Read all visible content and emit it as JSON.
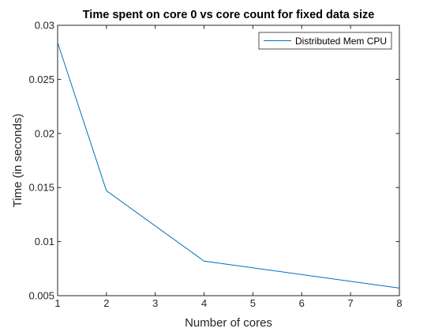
{
  "chart_data": {
    "type": "line",
    "title": "Time spent on core 0 vs core count for fixed data size",
    "xlabel": "Number of cores",
    "ylabel": "Time (in seconds)",
    "xlim": [
      1,
      8
    ],
    "ylim": [
      0.005,
      0.03
    ],
    "x_ticks": [
      "1",
      "2",
      "3",
      "4",
      "5",
      "6",
      "7",
      "8"
    ],
    "y_ticks": [
      "0.005",
      "0.01",
      "0.015",
      "0.02",
      "0.025",
      "0.03"
    ],
    "grid": false,
    "legend_position": "top-right",
    "series": [
      {
        "name": "Distributed Mem CPU",
        "color": "#0072BD",
        "x": [
          1,
          2,
          4,
          8
        ],
        "y": [
          0.0284,
          0.0147,
          0.0082,
          0.0057
        ]
      }
    ]
  }
}
